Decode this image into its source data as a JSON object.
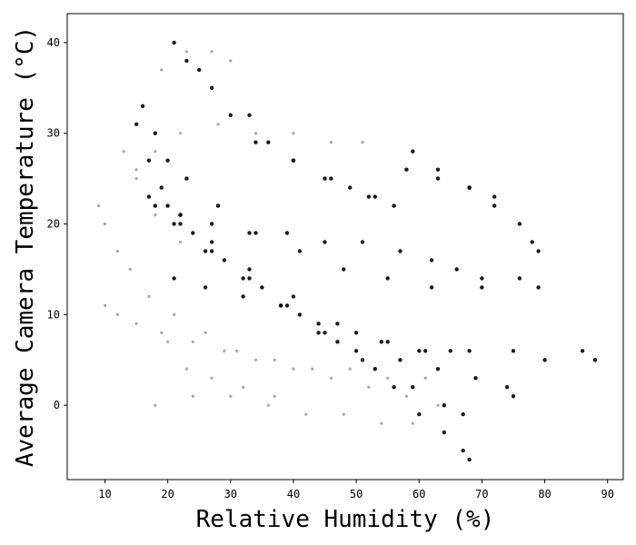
{
  "chart_data": {
    "type": "scatter",
    "title": "",
    "xlabel": "Relative Humidity (%)",
    "ylabel": "Average Camera Temperature (°C)",
    "xlim": [
      4,
      92.5
    ],
    "ylim": [
      -8.2,
      43.2
    ],
    "xticks": [
      10,
      20,
      30,
      40,
      50,
      60,
      70,
      80,
      90
    ],
    "yticks": [
      0,
      10,
      20,
      30,
      40
    ],
    "grid": false,
    "legend": "none",
    "marker_color": "#000000",
    "series": [
      {
        "style": "dark",
        "points": [
          [
            21,
            40
          ],
          [
            23,
            38
          ],
          [
            25,
            37
          ],
          [
            27,
            35
          ],
          [
            30,
            32
          ],
          [
            34,
            29
          ],
          [
            40,
            27
          ],
          [
            46,
            25
          ],
          [
            52,
            23
          ],
          [
            56,
            22
          ],
          [
            58,
            26
          ],
          [
            63,
            25
          ],
          [
            68,
            24
          ],
          [
            72,
            23
          ],
          [
            16,
            33
          ],
          [
            18,
            30
          ],
          [
            20,
            27
          ],
          [
            23,
            25
          ],
          [
            28,
            22
          ],
          [
            34,
            19
          ],
          [
            41,
            17
          ],
          [
            48,
            15
          ],
          [
            55,
            14
          ],
          [
            62,
            13
          ],
          [
            70,
            13
          ],
          [
            76,
            14
          ],
          [
            79,
            13
          ],
          [
            15,
            31
          ],
          [
            17,
            27
          ],
          [
            19,
            24
          ],
          [
            22,
            21
          ],
          [
            27,
            18
          ],
          [
            33,
            15
          ],
          [
            40,
            12
          ],
          [
            47,
            9
          ],
          [
            54,
            7
          ],
          [
            61,
            6
          ],
          [
            68,
            6
          ],
          [
            75,
            6
          ],
          [
            80,
            5
          ],
          [
            86,
            6
          ],
          [
            88,
            5
          ],
          [
            17,
            23
          ],
          [
            21,
            20
          ],
          [
            26,
            17
          ],
          [
            32,
            14
          ],
          [
            38,
            11
          ],
          [
            44,
            8
          ],
          [
            50,
            6
          ],
          [
            57,
            5
          ],
          [
            63,
            4
          ],
          [
            69,
            3
          ],
          [
            74,
            2
          ],
          [
            75,
            1
          ],
          [
            20,
            22
          ],
          [
            24,
            19
          ],
          [
            29,
            16
          ],
          [
            35,
            13
          ],
          [
            41,
            10
          ],
          [
            47,
            7
          ],
          [
            53,
            4
          ],
          [
            59,
            2
          ],
          [
            64,
            0
          ],
          [
            67,
            -1
          ],
          [
            22,
            20
          ],
          [
            27,
            17
          ],
          [
            33,
            14
          ],
          [
            39,
            11
          ],
          [
            45,
            8
          ],
          [
            51,
            5
          ],
          [
            56,
            2
          ],
          [
            60,
            -1
          ],
          [
            64,
            -3
          ],
          [
            67,
            -5
          ],
          [
            68,
            -6
          ],
          [
            21,
            14
          ],
          [
            26,
            13
          ],
          [
            32,
            12
          ],
          [
            38,
            11
          ],
          [
            44,
            9
          ],
          [
            50,
            8
          ],
          [
            55,
            7
          ],
          [
            60,
            6
          ],
          [
            65,
            6
          ],
          [
            18,
            22
          ],
          [
            22,
            21
          ],
          [
            27,
            20
          ],
          [
            33,
            19
          ],
          [
            39,
            19
          ],
          [
            45,
            18
          ],
          [
            51,
            18
          ],
          [
            57,
            17
          ],
          [
            62,
            16
          ],
          [
            66,
            15
          ],
          [
            70,
            14
          ],
          [
            33,
            32
          ],
          [
            36,
            29
          ],
          [
            40,
            27
          ],
          [
            45,
            25
          ],
          [
            49,
            24
          ],
          [
            53,
            23
          ],
          [
            59,
            28
          ],
          [
            63,
            26
          ],
          [
            68,
            24
          ],
          [
            72,
            22
          ],
          [
            76,
            20
          ],
          [
            78,
            18
          ],
          [
            79,
            17
          ]
        ]
      },
      {
        "style": "light",
        "points": [
          [
            9,
            22
          ],
          [
            10,
            20
          ],
          [
            12,
            17
          ],
          [
            14,
            15
          ],
          [
            17,
            12
          ],
          [
            21,
            10
          ],
          [
            26,
            8
          ],
          [
            31,
            6
          ],
          [
            37,
            5
          ],
          [
            43,
            4
          ],
          [
            49,
            4
          ],
          [
            55,
            3
          ],
          [
            61,
            3
          ],
          [
            10,
            11
          ],
          [
            12,
            10
          ],
          [
            15,
            9
          ],
          [
            19,
            8
          ],
          [
            24,
            7
          ],
          [
            29,
            6
          ],
          [
            34,
            5
          ],
          [
            40,
            4
          ],
          [
            46,
            3
          ],
          [
            52,
            2
          ],
          [
            58,
            1
          ],
          [
            63,
            0
          ],
          [
            18,
            0
          ],
          [
            24,
            1
          ],
          [
            30,
            1
          ],
          [
            36,
            0
          ],
          [
            42,
            -1
          ],
          [
            48,
            -1
          ],
          [
            54,
            -2
          ],
          [
            59,
            -2
          ],
          [
            15,
            26
          ],
          [
            18,
            28
          ],
          [
            22,
            30
          ],
          [
            28,
            31
          ],
          [
            34,
            30
          ],
          [
            40,
            30
          ],
          [
            46,
            29
          ],
          [
            51,
            29
          ],
          [
            19,
            37
          ],
          [
            23,
            39
          ],
          [
            27,
            39
          ],
          [
            30,
            38
          ],
          [
            20,
            7
          ],
          [
            23,
            4
          ],
          [
            27,
            3
          ],
          [
            32,
            2
          ],
          [
            37,
            1
          ],
          [
            13,
            28
          ],
          [
            15,
            25
          ],
          [
            18,
            21
          ],
          [
            22,
            18
          ]
        ]
      }
    ]
  }
}
